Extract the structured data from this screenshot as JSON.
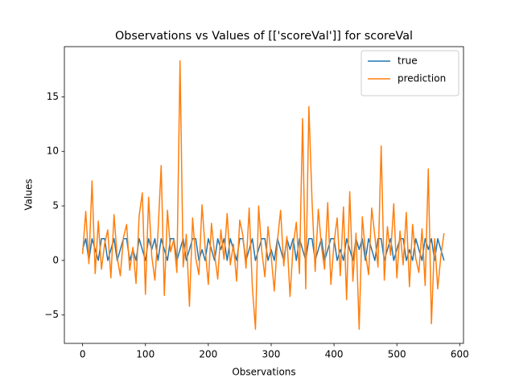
{
  "chart_data": {
    "type": "line",
    "title": "Observations vs Values of [['scoreVal']] for scoreVal",
    "x_label": "Observations",
    "y_label": "Values",
    "x": [
      0,
      5,
      10,
      15,
      20,
      25,
      30,
      35,
      40,
      45,
      50,
      55,
      60,
      65,
      70,
      75,
      80,
      85,
      90,
      95,
      100,
      105,
      110,
      115,
      120,
      125,
      130,
      135,
      140,
      145,
      150,
      155,
      160,
      165,
      170,
      175,
      180,
      185,
      190,
      195,
      200,
      205,
      210,
      215,
      220,
      225,
      230,
      235,
      240,
      245,
      250,
      255,
      260,
      265,
      270,
      275,
      280,
      285,
      290,
      295,
      300,
      305,
      310,
      315,
      320,
      325,
      330,
      335,
      340,
      345,
      350,
      355,
      360,
      365,
      370,
      375,
      380,
      385,
      390,
      395,
      400,
      405,
      410,
      415,
      420,
      425,
      430,
      435,
      440,
      445,
      450,
      455,
      460,
      465,
      470,
      475,
      480,
      485,
      490,
      495,
      500,
      505,
      510,
      515,
      520,
      525,
      530,
      535,
      540,
      545,
      550,
      555,
      560,
      565,
      570,
      575
    ],
    "series": [
      {
        "name": "true",
        "color": "#1f77b4",
        "values": [
          1,
          2,
          0,
          2,
          1,
          0,
          2,
          2,
          0,
          1,
          2,
          0,
          1,
          2,
          2,
          0,
          1,
          0,
          2,
          1,
          0,
          2,
          1,
          2,
          0,
          2,
          1,
          0,
          2,
          2,
          0,
          1,
          2,
          0,
          1,
          2,
          2,
          0,
          1,
          0,
          2,
          1,
          0,
          2,
          1,
          2,
          0,
          2,
          1,
          0,
          2,
          2,
          0,
          1,
          2,
          0,
          1,
          2,
          2,
          0,
          1,
          0,
          2,
          1,
          0,
          2,
          1,
          2,
          0,
          2,
          1,
          0,
          2,
          2,
          0,
          1,
          2,
          0,
          1,
          2,
          2,
          0,
          1,
          0,
          2,
          1,
          0,
          2,
          1,
          2,
          0,
          2,
          1,
          0,
          2,
          2,
          0,
          1,
          2,
          0,
          1,
          2,
          2,
          0,
          1,
          0,
          2,
          1,
          0,
          2,
          1,
          2,
          0,
          2,
          1,
          0
        ]
      },
      {
        "name": "prediction",
        "color": "#ff7f0e",
        "values": [
          0.6,
          4.5,
          -0.3,
          7.3,
          -1.2,
          3.6,
          -0.8,
          1.5,
          2.8,
          -1.6,
          4.2,
          0.3,
          -1.4,
          2.1,
          3.3,
          -0.9,
          1.2,
          -2.1,
          4.1,
          6.2,
          -3.1,
          5.8,
          0.4,
          -1.8,
          2.6,
          8.7,
          -3.2,
          4.6,
          0.8,
          1.9,
          -1.1,
          18.3,
          -0.6,
          2.4,
          -4.2,
          3.9,
          0.2,
          -1.3,
          5.1,
          1.1,
          -2.2,
          3.4,
          0.6,
          -1.7,
          2.8,
          0.1,
          4.3,
          -0.4,
          1.5,
          -1.9,
          3.7,
          2.3,
          -0.7,
          4.8,
          -2.4,
          -6.3,
          5.0,
          0.9,
          -1.5,
          3.1,
          0.4,
          -2.8,
          1.8,
          4.6,
          -0.5,
          2.2,
          -3.3,
          1.4,
          3.5,
          -1.2,
          13.0,
          -2.6,
          14.1,
          5.5,
          -1.0,
          4.7,
          1.3,
          -0.8,
          5.3,
          -2.2,
          1.6,
          3.9,
          -1.4,
          4.9,
          -3.6,
          6.3,
          -1.9,
          2.5,
          -6.3,
          4.0,
          0.7,
          -1.3,
          4.8,
          2.2,
          -0.6,
          10.5,
          -1.8,
          3.1,
          0.5,
          5.2,
          -1.6,
          2.7,
          -0.4,
          4.4,
          -2.4,
          3.3,
          0.2,
          -1.1,
          2.9,
          -2.3,
          8.4,
          -5.8,
          2.0,
          -2.6,
          0.4,
          2.5
        ]
      }
    ],
    "xlim": [
      -29,
      606
    ],
    "xticks": [
      0,
      100,
      200,
      300,
      400,
      500,
      600
    ],
    "ylim": [
      -7.6,
      19.6
    ],
    "yticks": [
      {
        "value": -5,
        "label": "−5"
      },
      0,
      5,
      10,
      15
    ],
    "legend": "upper right"
  }
}
